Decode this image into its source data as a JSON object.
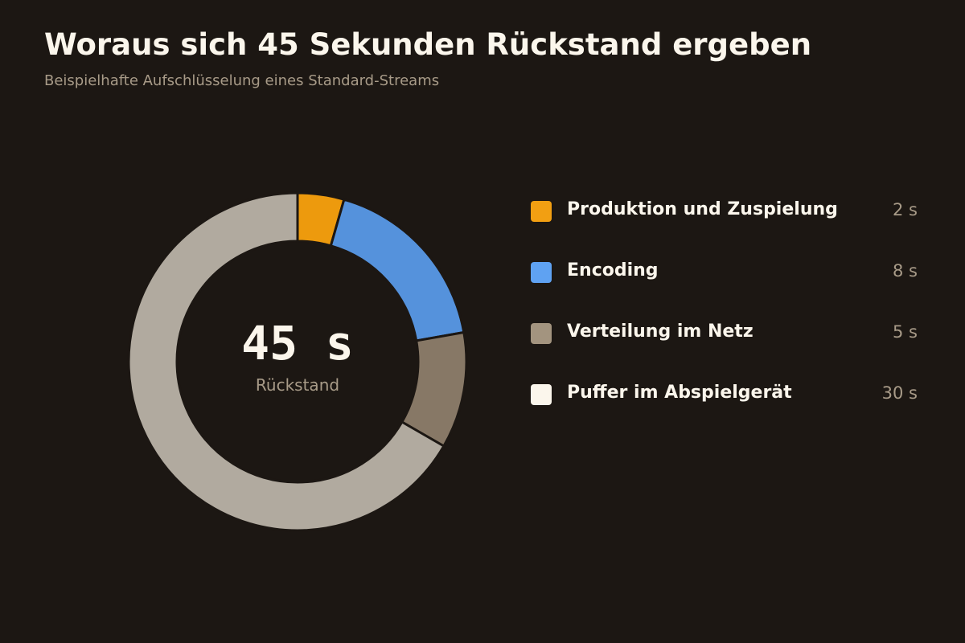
{
  "chart_data": {
    "type": "pie",
    "variant": "donut",
    "title": "Woraus sich 45 Sekunden Rückstand ergeben",
    "subtitle": "Beispielhafte Aufschlüsselung eines Standard-Streams",
    "center": {
      "value": "45 s",
      "label": "Rückstand"
    },
    "unit": "s",
    "legend_position": "right",
    "slices": [
      {
        "label": "Produktion und Zuspielung",
        "value": 2,
        "display": "2 s",
        "color": "#ed9a0d",
        "legend_color": "#f29f12"
      },
      {
        "label": "Encoding",
        "value": 8,
        "display": "8 s",
        "color": "#5592dc",
        "legend_color": "#5fa2f2"
      },
      {
        "label": "Verteilung im Netz",
        "value": 5,
        "display": "5 s",
        "color": "#877866",
        "legend_color": "#a3947f"
      },
      {
        "label": "Puffer im Abspielgerät",
        "value": 30,
        "display": "30 s",
        "color": "#b1aa9f",
        "legend_color": "#fbf6ec"
      }
    ]
  }
}
